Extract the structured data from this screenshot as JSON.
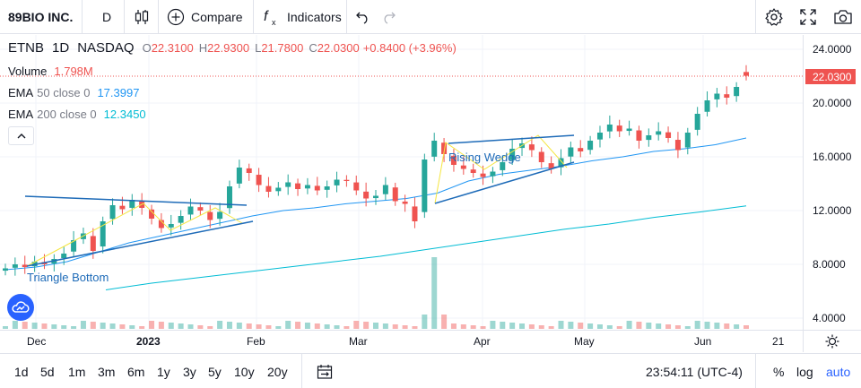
{
  "toolbar": {
    "symbol": "89BIO INC.",
    "interval": "D",
    "compare_label": "Compare",
    "indicators_label": "Indicators",
    "icons": [
      "candles-icon",
      "plus-circle-icon",
      "fx-icon",
      "undo-icon",
      "redo-icon",
      "gear-icon",
      "fullscreen-icon",
      "camera-icon"
    ]
  },
  "legend": {
    "ticker": "ETNB",
    "interval": "1D",
    "exchange": "NASDAQ",
    "o_label": "O",
    "o_value": "22.3100",
    "h_label": "H",
    "h_value": "22.9300",
    "l_label": "L",
    "l_value": "21.7800",
    "c_label": "C",
    "c_value": "22.0300",
    "change": "+0.8400 (+3.96%)",
    "volume_label": "Volume",
    "volume_value": "1.798M",
    "ema50_label": "EMA",
    "ema50_params": "50 close 0",
    "ema50_value": "17.3997",
    "ema200_label": "EMA",
    "ema200_params": "200 close 0",
    "ema200_value": "12.3450"
  },
  "annotations": {
    "pattern_triangle": "Triangle Bottom",
    "pattern_wedge": "Rising Wedge"
  },
  "price_axis": {
    "ticks": [
      "24.0000",
      "20.0000",
      "16.0000",
      "12.0000",
      "8.0000",
      "4.0000"
    ],
    "last_price": "22.0300"
  },
  "time_axis": {
    "labels": [
      "Dec",
      "2023",
      "Feb",
      "Mar",
      "Apr",
      "May",
      "Jun",
      "21"
    ]
  },
  "bottom_bar": {
    "ranges": [
      "1d",
      "5d",
      "1m",
      "3m",
      "6m",
      "1y",
      "3y",
      "5y",
      "10y",
      "20y"
    ],
    "time": "23:54:11 (UTC-4)",
    "percent_label": "%",
    "log_label": "log",
    "auto_label": "auto"
  },
  "colors": {
    "up": "#26a69a",
    "down": "#ef5350",
    "ema50": "#2196f3",
    "ema200": "#00bcd4",
    "accent": "#2962ff",
    "trendline": "#1e6bb8",
    "pattern_yellow": "#f5e642"
  },
  "chart_data": {
    "type": "candlestick",
    "symbol": "ETNB",
    "interval": "1D",
    "ylim": [
      3.5,
      25
    ],
    "last_close": 22.03,
    "x": [
      "Dec",
      "2023",
      "Feb",
      "Mar",
      "Apr",
      "May",
      "Jun"
    ],
    "approx_close_path": [
      7.7,
      8.0,
      7.8,
      8.2,
      8.0,
      8.4,
      8.8,
      9.8,
      10.3,
      9.0,
      11.2,
      12.4,
      12.1,
      12.8,
      12.2,
      11.4,
      10.7,
      11.0,
      11.6,
      12.3,
      12.0,
      11.3,
      11.9,
      13.8,
      15.2,
      14.8,
      13.9,
      13.4,
      13.7,
      14.1,
      13.6,
      13.9,
      13.5,
      13.8,
      14.3,
      14.2,
      13.5,
      12.9,
      13.1,
      13.9,
      12.7,
      12.5,
      11.2,
      15.8,
      17.2,
      16.2,
      15.4,
      15.1,
      14.8,
      14.5,
      14.9,
      15.6,
      16.6,
      17.0,
      16.5,
      15.6,
      15.1,
      15.9,
      16.7,
      16.4,
      17.2,
      17.8,
      18.4,
      17.9,
      18.1,
      17.2,
      17.6,
      17.9,
      17.4,
      16.5,
      17.8,
      19.2,
      20.2,
      20.7,
      20.4,
      21.2,
      22.03
    ],
    "ema50_path": [
      7.6,
      7.8,
      8.2,
      8.9,
      9.6,
      10.1,
      10.6,
      11.1,
      11.6,
      12.0,
      12.2,
      12.5,
      12.7,
      12.9,
      13.3,
      14.2,
      14.7,
      15.0,
      15.3,
      15.7,
      16.0,
      16.4,
      16.6,
      16.9,
      17.4
    ],
    "ema200_path": [
      6.1,
      6.6,
      7.0,
      7.4,
      7.8,
      8.2,
      8.6,
      9.1,
      9.6,
      10.1,
      10.6,
      11.0,
      11.5,
      11.9,
      12.35
    ],
    "annotations": [
      "Triangle Bottom",
      "Rising Wedge"
    ]
  }
}
